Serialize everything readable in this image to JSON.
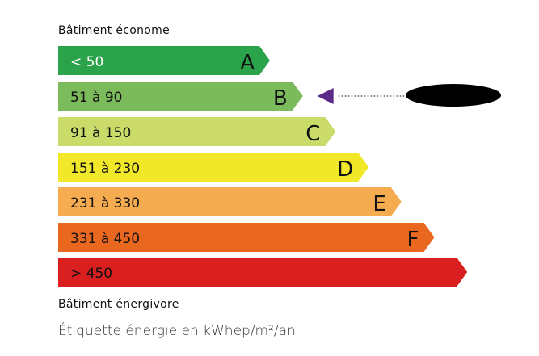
{
  "chart_data": {
    "type": "bar",
    "title": "",
    "top_label": "Bâtiment économe",
    "bottom_label": "Bâtiment énergivore",
    "unit_caption": "Étiquette énergie en kWhep/m²/an",
    "classes": [
      {
        "range": "< 50",
        "letter": "A",
        "color": "#2ba34a",
        "text_color": "#ffffff"
      },
      {
        "range": "51 à 90",
        "letter": "B",
        "color": "#7cbb5b",
        "text_color": "#111111"
      },
      {
        "range": "91 à 150",
        "letter": "C",
        "color": "#cbdb6a",
        "text_color": "#111111"
      },
      {
        "range": "151 à 230",
        "letter": "D",
        "color": "#f2e82a",
        "text_color": "#111111"
      },
      {
        "range": "231 à 330",
        "letter": "E",
        "color": "#f5ab4f",
        "text_color": "#111111"
      },
      {
        "range": "331 à 450",
        "letter": "F",
        "color": "#ea671f",
        "text_color": "#111111"
      },
      {
        "range": "> 450",
        "letter": "",
        "color": "#d91f20",
        "text_color": "#111111"
      }
    ],
    "indicated_class": "B",
    "marker_color": "#5b2a86",
    "value_redacted": true
  }
}
